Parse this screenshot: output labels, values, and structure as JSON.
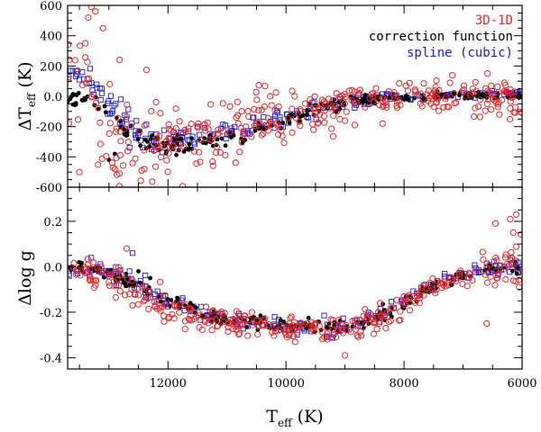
{
  "chart_data": [
    {
      "type": "scatter",
      "panel": "top",
      "ylabel": {
        "main": "ΔT",
        "sub": "eff",
        "unit": " (K)"
      },
      "xlim": [
        13700,
        6000
      ],
      "ylim": [
        -600,
        600
      ],
      "yticks": [
        600,
        400,
        200,
        0,
        -200,
        -400,
        -600
      ],
      "grid": false,
      "legend_placement": "top-right",
      "legend": [
        {
          "label": "3D-1D",
          "color": "#e8262a"
        },
        {
          "label": "correction function",
          "color": "#000000"
        },
        {
          "label": "spline (cubic)",
          "color": "#1a1ad8"
        }
      ],
      "series": [
        {
          "name": "3D-1D",
          "marker": "circle-open",
          "color": "#e8262a",
          "anchors": [
            [
              13600,
              120
            ],
            [
              13400,
              60
            ],
            [
              13200,
              -200
            ],
            [
              13000,
              -280
            ],
            [
              12800,
              -340
            ],
            [
              12600,
              -360
            ],
            [
              12400,
              -390
            ],
            [
              12200,
              -340
            ],
            [
              12000,
              -290
            ],
            [
              11500,
              -240
            ],
            [
              11000,
              -220
            ],
            [
              10500,
              -180
            ],
            [
              10000,
              -130
            ],
            [
              9500,
              -90
            ],
            [
              9000,
              -45
            ],
            [
              8500,
              -15
            ],
            [
              8000,
              -5
            ],
            [
              7500,
              -5
            ],
            [
              7000,
              -10
            ],
            [
              6500,
              -5
            ],
            [
              6000,
              10
            ]
          ],
          "scatter": [
            [
              13600,
              150
            ],
            [
              12400,
              180
            ],
            [
              12000,
              180
            ],
            [
              11500,
              150
            ],
            [
              11000,
              120
            ],
            [
              10500,
              100
            ],
            [
              10000,
              90
            ],
            [
              9500,
              80
            ],
            [
              9000,
              70
            ],
            [
              8500,
              60
            ],
            [
              8000,
              50
            ],
            [
              7500,
              50
            ],
            [
              7000,
              60
            ],
            [
              6500,
              70
            ],
            [
              6000,
              70
            ]
          ],
          "count": 340,
          "points": [
            [
              13300,
              590
            ],
            [
              13230,
              560
            ],
            [
              13350,
              520
            ],
            [
              13100,
              450
            ],
            [
              13400,
              350
            ],
            [
              12820,
              240
            ],
            [
              13500,
              -500
            ],
            [
              12900,
              -480
            ],
            [
              12400,
              -480
            ],
            [
              9200,
              -265
            ],
            [
              6300,
              90
            ],
            [
              6200,
              -80
            ]
          ]
        },
        {
          "name": "correction function",
          "marker": "dot",
          "color": "#000000",
          "anchors": [
            [
              13700,
              0
            ],
            [
              13400,
              -10
            ],
            [
              13200,
              -30
            ],
            [
              13000,
              -80
            ],
            [
              12700,
              -240
            ],
            [
              12400,
              -290
            ],
            [
              12200,
              -320
            ],
            [
              12000,
              -320
            ],
            [
              11500,
              -310
            ],
            [
              11000,
              -290
            ],
            [
              10500,
              -220
            ],
            [
              10000,
              -150
            ],
            [
              9500,
              -90
            ],
            [
              9000,
              -45
            ],
            [
              8500,
              -15
            ],
            [
              8000,
              0
            ],
            [
              7500,
              0
            ],
            [
              7000,
              5
            ],
            [
              6500,
              5
            ],
            [
              6000,
              5
            ]
          ],
          "scatter": [
            [
              13700,
              25
            ],
            [
              12400,
              40
            ],
            [
              12000,
              35
            ],
            [
              11000,
              30
            ],
            [
              10000,
              25
            ],
            [
              9000,
              25
            ],
            [
              8000,
              12
            ],
            [
              7000,
              10
            ],
            [
              6000,
              10
            ]
          ],
          "count": 230,
          "points": [
            [
              13000,
              -420
            ],
            [
              12900,
              -380
            ]
          ]
        },
        {
          "name": "spline (cubic)",
          "marker": "square-open",
          "color": "#1a1ad8",
          "anchors": [
            [
              13700,
              150
            ],
            [
              13500,
              160
            ],
            [
              13300,
              90
            ],
            [
              13100,
              0
            ],
            [
              12800,
              -160
            ],
            [
              12500,
              -270
            ],
            [
              12200,
              -310
            ],
            [
              12000,
              -310
            ],
            [
              11500,
              -250
            ],
            [
              11000,
              -230
            ],
            [
              10500,
              -190
            ],
            [
              10000,
              -140
            ],
            [
              9500,
              -90
            ],
            [
              9000,
              -45
            ],
            [
              8500,
              -15
            ],
            [
              8000,
              -5
            ],
            [
              7500,
              0
            ],
            [
              7000,
              10
            ],
            [
              6500,
              15
            ],
            [
              6000,
              20
            ]
          ],
          "scatter": [
            [
              13700,
              30
            ],
            [
              12800,
              60
            ],
            [
              12000,
              35
            ],
            [
              11000,
              30
            ],
            [
              10000,
              30
            ],
            [
              9000,
              25
            ],
            [
              8000,
              12
            ],
            [
              7000,
              12
            ],
            [
              6000,
              12
            ]
          ],
          "count": 230,
          "points": [
            [
              13650,
              170
            ],
            [
              13550,
              165
            ],
            [
              12500,
              -240
            ],
            [
              12800,
              -20
            ]
          ]
        }
      ]
    },
    {
      "type": "scatter",
      "panel": "bottom",
      "xlabel": {
        "main": "T",
        "sub": "eff",
        "unit": " (K)"
      },
      "ylabel": {
        "main": "Δlog g",
        "sub": "",
        "unit": ""
      },
      "xlim": [
        13700,
        6000
      ],
      "ylim": [
        -0.45,
        0.35
      ],
      "xticks": [
        12000,
        10000,
        8000,
        6000
      ],
      "yticks": [
        0.2,
        0.0,
        -0.2,
        -0.4
      ],
      "grid": false,
      "series": [
        {
          "name": "3D-1D",
          "marker": "circle-open",
          "color": "#e8262a",
          "anchors": [
            [
              13700,
              0.0
            ],
            [
              13000,
              -0.05
            ],
            [
              12500,
              -0.12
            ],
            [
              12000,
              -0.18
            ],
            [
              11500,
              -0.21
            ],
            [
              11000,
              -0.24
            ],
            [
              10500,
              -0.26
            ],
            [
              10000,
              -0.27
            ],
            [
              9500,
              -0.275
            ],
            [
              9000,
              -0.28
            ],
            [
              8500,
              -0.24
            ],
            [
              8000,
              -0.17
            ],
            [
              7500,
              -0.09
            ],
            [
              7000,
              -0.04
            ],
            [
              6500,
              -0.02
            ],
            [
              6000,
              0.0
            ]
          ],
          "scatter": [
            [
              13700,
              0.025
            ],
            [
              12500,
              0.035
            ],
            [
              11000,
              0.03
            ],
            [
              9500,
              0.025
            ],
            [
              9000,
              0.03
            ],
            [
              8000,
              0.03
            ],
            [
              7000,
              0.03
            ],
            [
              6500,
              0.05
            ],
            [
              6000,
              0.07
            ]
          ],
          "count": 330,
          "points": [
            [
              6100,
              0.23
            ],
            [
              6200,
              0.21
            ],
            [
              6450,
              0.19
            ],
            [
              6600,
              -0.25
            ],
            [
              9000,
              -0.39
            ],
            [
              12600,
              -0.17
            ],
            [
              12700,
              0.08
            ],
            [
              6150,
              0.15
            ],
            [
              6050,
              -0.09
            ]
          ]
        },
        {
          "name": "correction function",
          "marker": "dot",
          "color": "#000000",
          "anchors": [
            [
              13700,
              0.0
            ],
            [
              13000,
              -0.02
            ],
            [
              12500,
              -0.09
            ],
            [
              12000,
              -0.16
            ],
            [
              11500,
              -0.2
            ],
            [
              11000,
              -0.235
            ],
            [
              10500,
              -0.25
            ],
            [
              10000,
              -0.26
            ],
            [
              9500,
              -0.265
            ],
            [
              9000,
              -0.27
            ],
            [
              8500,
              -0.23
            ],
            [
              8000,
              -0.165
            ],
            [
              7500,
              -0.09
            ],
            [
              7000,
              -0.04
            ],
            [
              6500,
              -0.015
            ],
            [
              6000,
              0.0
            ]
          ],
          "scatter": [
            [
              13700,
              0.015
            ],
            [
              12000,
              0.02
            ],
            [
              10000,
              0.015
            ],
            [
              8000,
              0.015
            ],
            [
              6000,
              0.01
            ]
          ],
          "count": 210,
          "points": [
            [
              12500,
              -0.02
            ],
            [
              12300,
              -0.05
            ]
          ]
        },
        {
          "name": "spline (cubic)",
          "marker": "square-open",
          "color": "#1a1ad8",
          "anchors": [
            [
              13700,
              0.0
            ],
            [
              13000,
              -0.02
            ],
            [
              12500,
              -0.09
            ],
            [
              12000,
              -0.16
            ],
            [
              11500,
              -0.2
            ],
            [
              11000,
              -0.235
            ],
            [
              10500,
              -0.25
            ],
            [
              10000,
              -0.26
            ],
            [
              9500,
              -0.265
            ],
            [
              9000,
              -0.27
            ],
            [
              8500,
              -0.22
            ],
            [
              8000,
              -0.16
            ],
            [
              7500,
              -0.085
            ],
            [
              7000,
              -0.035
            ],
            [
              6500,
              -0.01
            ],
            [
              6000,
              0.0
            ]
          ],
          "scatter": [
            [
              13700,
              0.02
            ],
            [
              12000,
              0.025
            ],
            [
              10000,
              0.02
            ],
            [
              8000,
              0.02
            ],
            [
              6000,
              0.015
            ]
          ],
          "count": 210,
          "points": [
            [
              13300,
              0.04
            ],
            [
              12600,
              0.06
            ],
            [
              6200,
              0.03
            ],
            [
              9300,
              -0.31
            ]
          ]
        }
      ]
    }
  ]
}
